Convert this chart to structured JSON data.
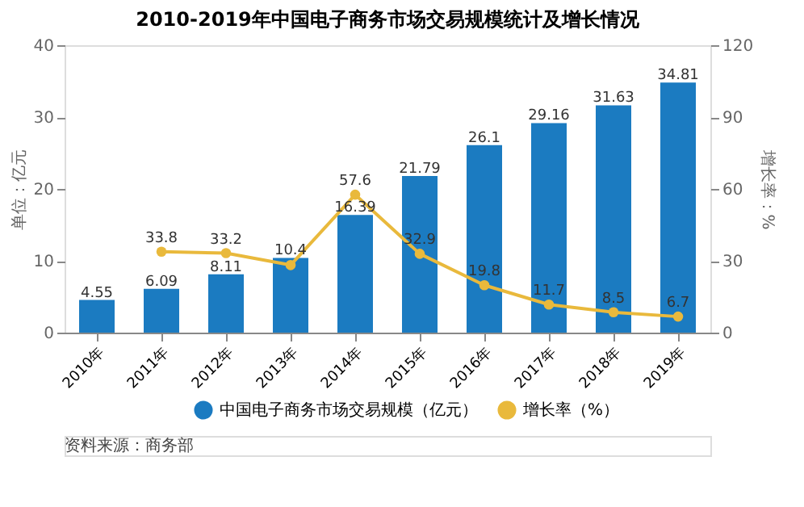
{
  "chart_data": {
    "type": "bar",
    "title": "2010-2019年中国电子商务市场交易规模统计及增长情况",
    "categories": [
      "2010年",
      "2011年",
      "2012年",
      "2013年",
      "2014年",
      "2015年",
      "2016年",
      "2017年",
      "2018年",
      "2019年"
    ],
    "series": [
      {
        "name": "中国电子商务市场交易规模（亿元）",
        "color": "#1b7bc1",
        "values": [
          4.55,
          6.09,
          8.11,
          10.4,
          16.39,
          21.79,
          26.1,
          29.16,
          31.63,
          34.81
        ]
      },
      {
        "name": "增长率（%）",
        "type": "line",
        "axis": "y2",
        "color": "#e9b93c",
        "values": [
          null,
          33.8,
          33.2,
          28.2,
          57.6,
          32.9,
          19.8,
          11.7,
          8.5,
          6.7
        ],
        "value_labels": [
          null,
          "33.8",
          "33.2",
          null,
          "57.6",
          "32.9",
          "19.8",
          "11.7",
          "8.5",
          "6.7"
        ]
      }
    ],
    "ylabel": "单位：亿元",
    "y2label": "增长率：%",
    "ylim": [
      0,
      40
    ],
    "yticks": [
      0,
      10,
      20,
      30,
      40
    ],
    "y2lim": [
      0,
      120
    ],
    "y2ticks": [
      0,
      30,
      60,
      90,
      120
    ],
    "data_labels": true,
    "marker": "circle",
    "legend": "bottom",
    "grid": false,
    "annotations": [
      "资料来源：商务部"
    ]
  }
}
